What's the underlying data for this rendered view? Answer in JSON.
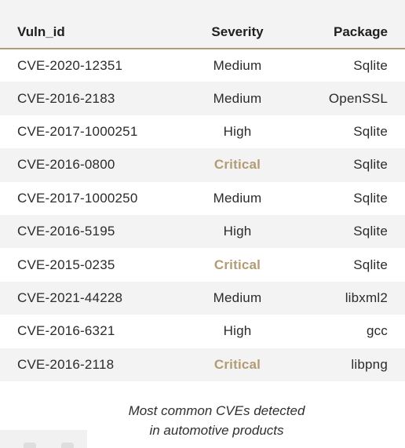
{
  "table": {
    "headers": {
      "vuln_id": "Vuln_id",
      "severity": "Severity",
      "package": "Package"
    },
    "rows": [
      {
        "vuln_id": "CVE-2020-12351",
        "severity": "Medium",
        "package": "Sqlite"
      },
      {
        "vuln_id": "CVE-2016-2183",
        "severity": "Medium",
        "package": "OpenSSL"
      },
      {
        "vuln_id": "CVE-2017-1000251",
        "severity": "High",
        "package": "Sqlite"
      },
      {
        "vuln_id": "CVE-2016-0800",
        "severity": "Critical",
        "package": "Sqlite"
      },
      {
        "vuln_id": "CVE-2017-1000250",
        "severity": "Medium",
        "package": "Sqlite"
      },
      {
        "vuln_id": "CVE-2016-5195",
        "severity": "High",
        "package": "Sqlite"
      },
      {
        "vuln_id": "CVE-2015-0235",
        "severity": "Critical",
        "package": "Sqlite"
      },
      {
        "vuln_id": "CVE-2021-44228",
        "severity": "Medium",
        "package": "libxml2"
      },
      {
        "vuln_id": "CVE-2016-6321",
        "severity": "High",
        "package": "gcc"
      },
      {
        "vuln_id": "CVE-2016-2118",
        "severity": "Critical",
        "package": "libpng"
      }
    ]
  },
  "caption": {
    "line1": "Most common CVEs detected",
    "line2": "in automotive products"
  },
  "colors": {
    "accent_gold": "#b39b74",
    "row_alt": "#f3f3f3",
    "text": "#2b2b2b"
  }
}
